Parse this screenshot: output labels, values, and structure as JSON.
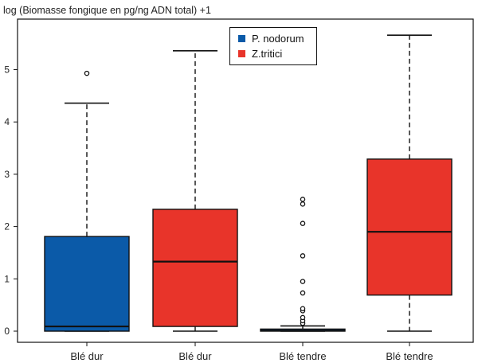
{
  "chart_data": {
    "type": "boxplot",
    "title": "",
    "ylabel": "log (Biomasse fongique en pg/ng ADN total) +1",
    "xlabel": "",
    "ylim": [
      -0.1,
      5.7
    ],
    "yticks": [
      0,
      1,
      2,
      3,
      4,
      5
    ],
    "grid": false,
    "legend_position": "top-center",
    "legend": [
      {
        "name": "P. nodorum",
        "color": "#0b5aa8"
      },
      {
        "name": "Z.tritici",
        "color": "#e8342a"
      }
    ],
    "categories": [
      "Blé dur",
      "Blé dur",
      "Blé tendre",
      "Blé tendre"
    ],
    "boxes": [
      {
        "category": "Blé dur",
        "series": "P. nodorum",
        "color": "#0b5aa8",
        "whisker_low": 0.0,
        "q1": 0.0,
        "median": 0.09,
        "q3": 1.81,
        "whisker_high": 4.36,
        "outliers": [
          4.93
        ]
      },
      {
        "category": "Blé dur",
        "series": "Z.tritici",
        "color": "#e8342a",
        "whisker_low": 0.0,
        "q1": 0.09,
        "median": 1.33,
        "q3": 2.33,
        "whisker_high": 5.36,
        "outliers": []
      },
      {
        "category": "Blé tendre",
        "series": "P. nodorum",
        "color": "#0b5aa8",
        "whisker_low": 0.0,
        "q1": 0.0,
        "median": 0.01,
        "q3": 0.04,
        "whisker_high": 0.1,
        "outliers": [
          0.15,
          0.2,
          0.26,
          0.39,
          0.43,
          0.73,
          0.95,
          1.44,
          2.06,
          2.43,
          2.52
        ]
      },
      {
        "category": "Blé tendre",
        "series": "Z.tritici",
        "color": "#e8342a",
        "whisker_low": 0.0,
        "q1": 0.69,
        "median": 1.9,
        "q3": 3.29,
        "whisker_high": 5.66,
        "outliers": []
      }
    ]
  }
}
